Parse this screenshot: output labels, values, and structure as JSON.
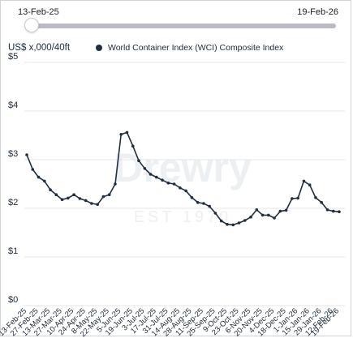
{
  "range": {
    "start": "13-Feb-25",
    "end": "19-Feb-26",
    "position": 0
  },
  "unit_label": "US$ x,000/40ft",
  "colors": {
    "line": "#1f2f40",
    "grid": "#e4e6e9",
    "track": "#b9bdc3",
    "watermark": "#edf0f3"
  },
  "watermark": {
    "brand": "Drewry",
    "est": "EST 1970"
  },
  "chart_data": {
    "type": "line",
    "title": "",
    "xlabel": "",
    "ylabel": "US$ x,000/40ft",
    "ylim": [
      0,
      5
    ],
    "yticks": [
      {
        "value": 0,
        "label": "$0"
      },
      {
        "value": 1,
        "label": "$1"
      },
      {
        "value": 2,
        "label": "$2"
      },
      {
        "value": 3,
        "label": "$3"
      },
      {
        "value": 4,
        "label": "$4"
      },
      {
        "value": 5,
        "label": "$5"
      }
    ],
    "grid": true,
    "legend_position": "top",
    "xtick_labels": [
      "13-Feb-25",
      "27-Feb-25",
      "13-Mar-25",
      "27-Mar-25",
      "10-Apr-25",
      "24-Apr-25",
      "8-May-25",
      "22-May-25",
      "5-Jun-25",
      "19-Jun-25",
      "3-Jul-25",
      "17-Jul-25",
      "31-Jul-25",
      "14-Aug-25",
      "28-Aug-25",
      "11-Sep-25",
      "25-Sep-25",
      "9-Oct-25",
      "23-Oct-25",
      "6-Nov-25",
      "20-Nov-25",
      "4-Dec-25",
      "18-Dec-25",
      "1-Jan-26",
      "15-Jan-26",
      "29-Jan-26",
      "12-Feb-26",
      "19-Feb-26"
    ],
    "series": [
      {
        "name": "World Container Index (WCI) Composite Index",
        "x": [
          "13-Feb-25",
          "20-Feb-25",
          "27-Feb-25",
          "6-Mar-25",
          "13-Mar-25",
          "20-Mar-25",
          "27-Mar-25",
          "3-Apr-25",
          "10-Apr-25",
          "17-Apr-25",
          "24-Apr-25",
          "1-May-25",
          "8-May-25",
          "15-May-25",
          "22-May-25",
          "29-May-25",
          "5-Jun-25",
          "12-Jun-25",
          "19-Jun-25",
          "26-Jun-25",
          "3-Jul-25",
          "10-Jul-25",
          "17-Jul-25",
          "24-Jul-25",
          "31-Jul-25",
          "7-Aug-25",
          "14-Aug-25",
          "21-Aug-25",
          "28-Aug-25",
          "4-Sep-25",
          "11-Sep-25",
          "18-Sep-25",
          "25-Sep-25",
          "2-Oct-25",
          "9-Oct-25",
          "16-Oct-25",
          "23-Oct-25",
          "30-Oct-25",
          "6-Nov-25",
          "13-Nov-25",
          "20-Nov-25",
          "27-Nov-25",
          "4-Dec-25",
          "11-Dec-25",
          "18-Dec-25",
          "25-Dec-25",
          "1-Jan-26",
          "8-Jan-26",
          "15-Jan-26",
          "22-Jan-26",
          "29-Jan-26",
          "5-Feb-26",
          "12-Feb-26",
          "19-Feb-26"
        ],
        "values": [
          3.1,
          2.8,
          2.64,
          2.56,
          2.38,
          2.28,
          2.18,
          2.21,
          2.28,
          2.2,
          2.16,
          2.1,
          2.08,
          2.24,
          2.28,
          2.5,
          3.52,
          3.56,
          3.28,
          2.98,
          2.82,
          2.7,
          2.64,
          2.58,
          2.52,
          2.5,
          2.42,
          2.36,
          2.22,
          2.12,
          2.1,
          2.04,
          1.9,
          1.74,
          1.67,
          1.66,
          1.7,
          1.75,
          1.82,
          1.97,
          1.86,
          1.86,
          1.8,
          1.94,
          1.96,
          2.2,
          2.21,
          2.56,
          2.48,
          2.22,
          2.12,
          1.97,
          1.94,
          1.93
        ]
      }
    ]
  }
}
